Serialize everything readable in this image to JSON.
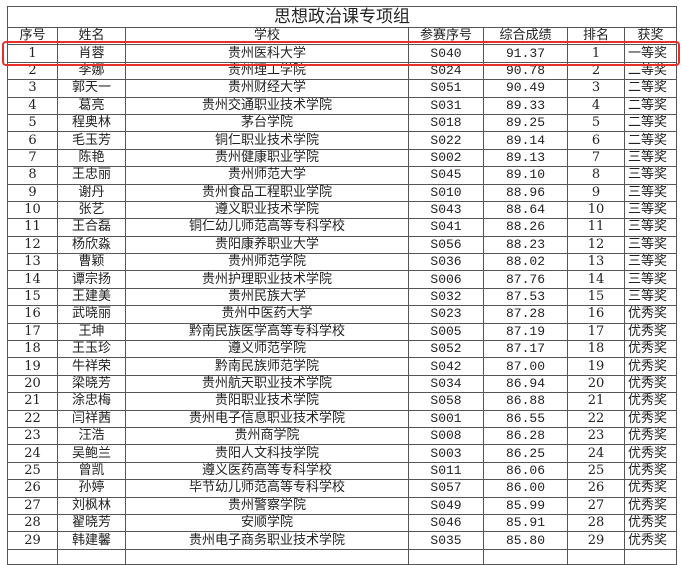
{
  "title": "思想政治课专项组",
  "columns": [
    "序号",
    "姓名",
    "学校",
    "参赛序号",
    "综合成绩",
    "排名",
    "获奖"
  ],
  "highlight_color": "#e8302a",
  "highlighted_row": 1,
  "rows": [
    [
      "1",
      "肖蓉",
      "贵州医科大学",
      "S040",
      "91.37",
      "1",
      "一等奖"
    ],
    [
      "2",
      "李娜",
      "贵州理工学院",
      "S024",
      "90.78",
      "2",
      "二等奖"
    ],
    [
      "3",
      "郭天一",
      "贵州财经大学",
      "S051",
      "90.49",
      "3",
      "二等奖"
    ],
    [
      "4",
      "葛亮",
      "贵州交通职业技术学院",
      "S031",
      "89.33",
      "4",
      "二等奖"
    ],
    [
      "5",
      "程奥林",
      "茅台学院",
      "S018",
      "89.25",
      "5",
      "二等奖"
    ],
    [
      "6",
      "毛玉芳",
      "铜仁职业技术学院",
      "S022",
      "89.14",
      "6",
      "二等奖"
    ],
    [
      "7",
      "陈艳",
      "贵州健康职业学院",
      "S002",
      "89.13",
      "7",
      "三等奖"
    ],
    [
      "8",
      "王忠丽",
      "贵州师范大学",
      "S045",
      "89.10",
      "8",
      "三等奖"
    ],
    [
      "9",
      "谢丹",
      "贵州食品工程职业学院",
      "S010",
      "88.96",
      "9",
      "三等奖"
    ],
    [
      "10",
      "张艺",
      "遵义职业技术学院",
      "S043",
      "88.64",
      "10",
      "三等奖"
    ],
    [
      "11",
      "王合磊",
      "铜仁幼儿师范高等专科学校",
      "S041",
      "88.26",
      "11",
      "三等奖"
    ],
    [
      "12",
      "杨欣淼",
      "贵阳康养职业大学",
      "S056",
      "88.23",
      "12",
      "三等奖"
    ],
    [
      "13",
      "曹颖",
      "贵州师范学院",
      "S036",
      "88.02",
      "13",
      "三等奖"
    ],
    [
      "14",
      "谭宗扬",
      "贵州护理职业技术学院",
      "S006",
      "87.76",
      "14",
      "三等奖"
    ],
    [
      "15",
      "王建美",
      "贵州民族大学",
      "S032",
      "87.53",
      "15",
      "三等奖"
    ],
    [
      "16",
      "武晓丽",
      "贵州中医药大学",
      "S023",
      "87.28",
      "16",
      "优秀奖"
    ],
    [
      "17",
      "王坤",
      "黔南民族医学高等专科学校",
      "S005",
      "87.19",
      "17",
      "优秀奖"
    ],
    [
      "18",
      "王玉珍",
      "遵义师范学院",
      "S052",
      "87.17",
      "18",
      "优秀奖"
    ],
    [
      "19",
      "牛祥荣",
      "黔南民族师范学院",
      "S042",
      "87.00",
      "19",
      "优秀奖"
    ],
    [
      "20",
      "梁晓芳",
      "贵州航天职业技术学院",
      "S034",
      "86.94",
      "20",
      "优秀奖"
    ],
    [
      "21",
      "涂忠梅",
      "贵阳职业技术学院",
      "S058",
      "86.88",
      "21",
      "优秀奖"
    ],
    [
      "22",
      "闫祥茜",
      "贵州电子信息职业技术学院",
      "S001",
      "86.55",
      "22",
      "优秀奖"
    ],
    [
      "23",
      "汪浩",
      "贵州商学院",
      "S008",
      "86.28",
      "23",
      "优秀奖"
    ],
    [
      "24",
      "吴鲍兰",
      "贵阳人文科技学院",
      "S003",
      "86.25",
      "24",
      "优秀奖"
    ],
    [
      "25",
      "曾凯",
      "遵义医药高等专科学校",
      "S011",
      "86.06",
      "25",
      "优秀奖"
    ],
    [
      "26",
      "孙婷",
      "毕节幼儿师范高等专科学校",
      "S057",
      "86.00",
      "26",
      "优秀奖"
    ],
    [
      "27",
      "刘枫林",
      "贵州警察学院",
      "S049",
      "85.99",
      "27",
      "优秀奖"
    ],
    [
      "28",
      "翟晓芳",
      "安顺学院",
      "S046",
      "85.91",
      "28",
      "优秀奖"
    ],
    [
      "29",
      "韩建馨",
      "贵州电子商务职业技术学院",
      "S035",
      "85.80",
      "29",
      "优秀奖"
    ]
  ]
}
